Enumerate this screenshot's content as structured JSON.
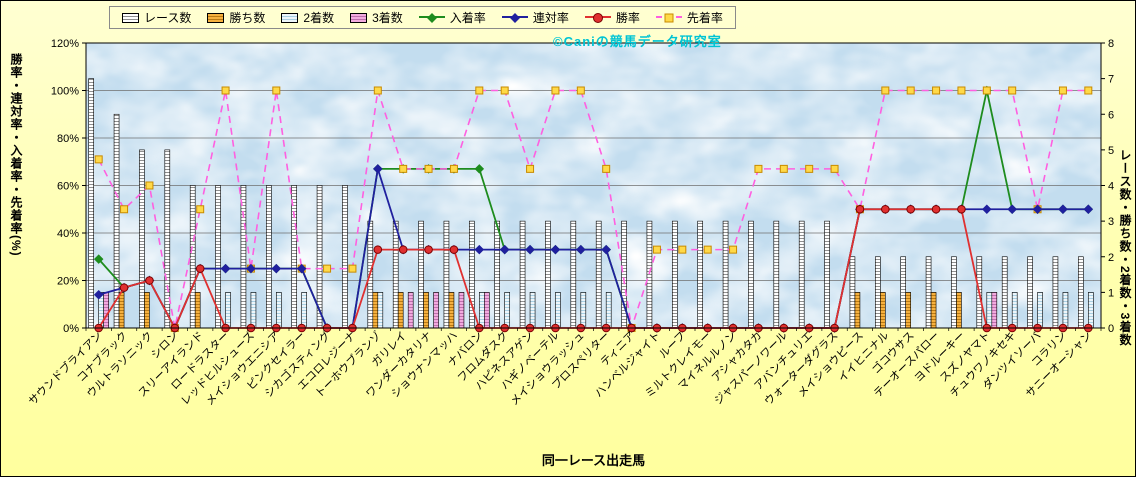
{
  "watermark": "©Caniの競馬データ研究室",
  "legend": [
    {
      "key": "race-count",
      "label": "レース数",
      "swatch": "striped-bar"
    },
    {
      "key": "win-count",
      "label": "勝ち数",
      "swatch": "yellow-bar"
    },
    {
      "key": "second-count",
      "label": "2着数",
      "swatch": "lightblue-bar"
    },
    {
      "key": "third-count",
      "label": "3着数",
      "swatch": "pink-bar"
    },
    {
      "key": "placing-rate",
      "label": "入着率",
      "swatch": "green-diamond-line"
    },
    {
      "key": "quinella-rate",
      "label": "連対率",
      "swatch": "navy-diamond-line"
    },
    {
      "key": "win-rate",
      "label": "勝率",
      "swatch": "red-circle-line"
    },
    {
      "key": "finish-ahead-rate",
      "label": "先着率",
      "swatch": "yellow-square-dashed-line"
    }
  ],
  "chart_data": {
    "type": "combo",
    "xlabel": "同一レース出走馬",
    "legend_position": "top",
    "grid": true,
    "categories": [
      "サウンドブライアン",
      "コナブラック",
      "ウルトラソニック",
      "シロン",
      "スリーアイランド",
      "ロードラスター",
      "レッドヒルシューズ",
      "メイショウエニシア",
      "ピンクセイラー",
      "シカゴスティング",
      "エコロレジーナ",
      "トーホウブランゾ",
      "ガリレイ",
      "ワンダーカタリナ",
      "ショウナンマッハ",
      "ナバロン",
      "フロムダスク",
      "ハピネスアゲン",
      "ハギノベーテル",
      "メイショウラッシュ",
      "プロスペリター",
      "ティニア",
      "ハンベルジャイト",
      "ルーフ",
      "ミルトクレイモー",
      "マイネルルノン",
      "アシャカタカ",
      "ジャスパーノワール",
      "アバンチュリエ",
      "ウォーターダグラス",
      "メイショウピース",
      "イイヒニナル",
      "ゴコウサス",
      "テーオースパロー",
      "ヨドルーキー",
      "スズノヤマト",
      "チュウワノキセキ",
      "ダンツイソーバ",
      "コラリン",
      "サニーオーシャン"
    ],
    "bar_series": [
      {
        "name": "レース数",
        "axis": "right",
        "values": [
          7,
          6,
          5,
          5,
          4,
          4,
          4,
          4,
          4,
          4,
          4,
          3,
          3,
          3,
          3,
          3,
          3,
          3,
          3,
          3,
          3,
          3,
          3,
          3,
          3,
          3,
          3,
          3,
          3,
          3,
          2,
          2,
          2,
          2,
          2,
          2,
          2,
          2,
          2,
          2
        ]
      },
      {
        "name": "勝ち数",
        "axis": "right",
        "values": [
          0,
          1,
          1,
          0,
          1,
          0,
          0,
          0,
          0,
          0,
          0,
          1,
          1,
          1,
          1,
          0,
          0,
          0,
          0,
          0,
          0,
          0,
          0,
          0,
          0,
          0,
          0,
          0,
          0,
          0,
          1,
          1,
          1,
          1,
          1,
          0,
          0,
          0,
          0,
          0
        ]
      },
      {
        "name": "2着数",
        "axis": "right",
        "values": [
          1,
          0,
          0,
          0,
          0,
          1,
          1,
          1,
          1,
          0,
          0,
          1,
          0,
          0,
          0,
          1,
          1,
          1,
          1,
          1,
          1,
          0,
          0,
          0,
          0,
          0,
          0,
          0,
          0,
          0,
          0,
          0,
          0,
          0,
          0,
          1,
          1,
          1,
          1,
          1
        ]
      },
      {
        "name": "3着数",
        "axis": "right",
        "values": [
          1,
          0,
          0,
          0,
          0,
          0,
          0,
          0,
          0,
          0,
          0,
          0,
          1,
          1,
          1,
          1,
          0,
          0,
          0,
          0,
          0,
          0,
          0,
          0,
          0,
          0,
          0,
          0,
          0,
          0,
          0,
          0,
          0,
          0,
          0,
          1,
          0,
          0,
          0,
          0
        ]
      }
    ],
    "line_series": [
      {
        "name": "入着率",
        "axis": "left",
        "values": [
          29,
          17,
          20,
          0,
          25,
          25,
          25,
          25,
          25,
          0,
          0,
          67,
          67,
          67,
          67,
          67,
          33,
          33,
          33,
          33,
          33,
          0,
          0,
          0,
          0,
          0,
          0,
          0,
          0,
          0,
          50,
          50,
          50,
          50,
          50,
          100,
          50,
          50,
          50,
          50
        ]
      },
      {
        "name": "連対率",
        "axis": "left",
        "values": [
          14,
          17,
          20,
          0,
          25,
          25,
          25,
          25,
          25,
          0,
          0,
          67,
          33,
          33,
          33,
          33,
          33,
          33,
          33,
          33,
          33,
          0,
          0,
          0,
          0,
          0,
          0,
          0,
          0,
          0,
          50,
          50,
          50,
          50,
          50,
          50,
          50,
          50,
          50,
          50
        ]
      },
      {
        "name": "勝率",
        "axis": "left",
        "values": [
          0,
          17,
          20,
          0,
          25,
          0,
          0,
          0,
          0,
          0,
          0,
          33,
          33,
          33,
          33,
          0,
          0,
          0,
          0,
          0,
          0,
          0,
          0,
          0,
          0,
          0,
          0,
          0,
          0,
          0,
          50,
          50,
          50,
          50,
          50,
          0,
          0,
          0,
          0,
          0
        ]
      },
      {
        "name": "先着率",
        "axis": "left",
        "values": [
          71,
          50,
          60,
          0,
          50,
          100,
          25,
          100,
          25,
          25,
          25,
          100,
          67,
          67,
          67,
          100,
          100,
          67,
          100,
          100,
          67,
          0,
          33,
          33,
          33,
          33,
          67,
          67,
          67,
          67,
          50,
          100,
          100,
          100,
          100,
          100,
          100,
          50,
          100,
          100
        ]
      }
    ],
    "left_axis": {
      "title": "勝率・連対率・入着率・先着率(%)",
      "min": 0,
      "max": 120,
      "ticks": [
        "0%",
        "20%",
        "40%",
        "60%",
        "80%",
        "100%",
        "120%"
      ]
    },
    "right_axis": {
      "title": "レース数・勝ち数・2着数・3着数",
      "min": 0,
      "max": 8,
      "ticks": [
        "0",
        "1",
        "2",
        "3",
        "4",
        "5",
        "6",
        "7",
        "8"
      ]
    },
    "colors": {
      "race_bar": "#FFFFFF",
      "race_stripe": "#8F8F8F",
      "win_bar": "#F6B13F",
      "win_stripe": "#BA7A14",
      "second_bar": "#EDF6FB",
      "second_stripe": "#A9CFE2",
      "third_bar": "#F2ABDF",
      "third_stripe": "#BF6FAE",
      "placing_line": "#1E8C1E",
      "quinella_line": "#20209E",
      "win_line": "#E03030",
      "win_marker_edge": "#7A0000",
      "finish_line": "#FF5FE0",
      "finish_marker": "#FFD948",
      "finish_marker_edge": "#C88A00",
      "plot_bg": "#C3DDEF",
      "grid": "#6F6F6F",
      "watermark": "#00C4D4"
    }
  }
}
